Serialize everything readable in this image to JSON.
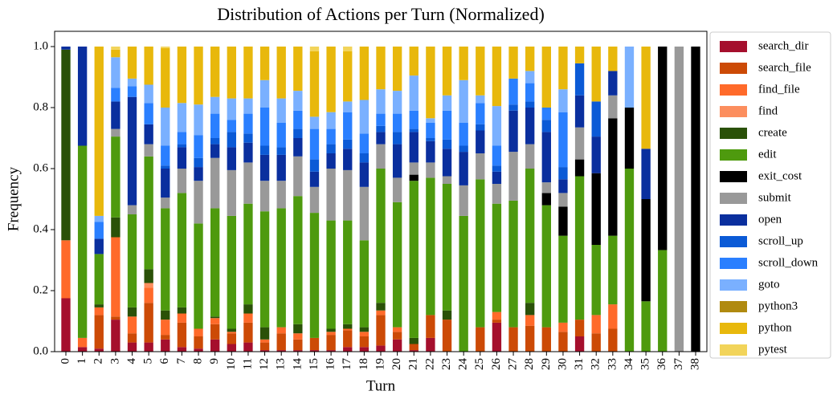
{
  "chart_data": {
    "type": "stacked_bar",
    "title": "Distribution of Actions per Turn (Normalized)",
    "x_label": "Turn",
    "y_label": "Frequency",
    "categories": [
      "0",
      "1",
      "2",
      "3",
      "4",
      "5",
      "6",
      "7",
      "8",
      "9",
      "10",
      "11",
      "12",
      "13",
      "14",
      "15",
      "16",
      "17",
      "18",
      "19",
      "20",
      "21",
      "22",
      "23",
      "24",
      "25",
      "26",
      "27",
      "28",
      "29",
      "30",
      "31",
      "32",
      "33",
      "34",
      "35",
      "36",
      "37",
      "38"
    ],
    "ylim": [
      0,
      1.05
    ],
    "yticks": [
      {
        "value": 0,
        "label": "0.0"
      },
      {
        "value": 0.2,
        "label": "0.2"
      },
      {
        "value": 0.4,
        "label": "0.4"
      },
      {
        "value": 0.6,
        "label": "0.6"
      },
      {
        "value": 0.8,
        "label": "0.8"
      },
      {
        "value": 1.0,
        "label": "1.0"
      }
    ],
    "legend_position": "outside right",
    "series": [
      {
        "name": "search_dir",
        "color": "#a50f2d",
        "values": [
          0.175,
          0.015,
          0.01,
          0.105,
          0.03,
          0.03,
          0.04,
          0.015,
          0.01,
          0.04,
          0.025,
          0.03,
          0.005,
          0.005,
          0.005,
          0.005,
          0.005,
          0.015,
          0.015,
          0.02,
          0.04,
          0.005,
          0.045,
          0,
          0,
          0,
          0.095,
          0,
          0,
          0,
          0,
          0.05,
          0,
          0,
          0,
          0,
          0,
          0,
          0
        ]
      },
      {
        "name": "search_file",
        "color": "#cc4a06",
        "values": [
          0,
          0,
          0.11,
          0.01,
          0.03,
          0.13,
          0.015,
          0.08,
          0.04,
          0.05,
          0.035,
          0.065,
          0.025,
          0.055,
          0.035,
          0.04,
          0.05,
          0.055,
          0.035,
          0.1,
          0.025,
          0.02,
          0.075,
          0.105,
          0,
          0.08,
          0.01,
          0.08,
          0.085,
          0.08,
          0.065,
          0.055,
          0.06,
          0.075,
          0,
          0,
          0,
          0,
          0
        ]
      },
      {
        "name": "find_file",
        "color": "#ff6a2a",
        "values": [
          0.19,
          0.03,
          0.025,
          0.26,
          0.055,
          0.05,
          0.05,
          0.03,
          0.025,
          0.02,
          0.005,
          0.03,
          0.01,
          0.02,
          0.02,
          0,
          0.01,
          0.005,
          0.015,
          0.015,
          0.015,
          0,
          0,
          0,
          0,
          0,
          0.025,
          0,
          0.035,
          0,
          0.03,
          0,
          0.06,
          0.08,
          0,
          0,
          0,
          0,
          0
        ]
      },
      {
        "name": "find",
        "color": "#fc8e5e",
        "values": [
          0,
          0,
          0,
          0,
          0,
          0.015,
          0,
          0,
          0,
          0,
          0,
          0,
          0,
          0,
          0,
          0,
          0,
          0,
          0,
          0,
          0,
          0,
          0,
          0,
          0,
          0,
          0,
          0,
          0,
          0,
          0,
          0,
          0,
          0,
          0,
          0,
          0,
          0,
          0
        ]
      },
      {
        "name": "create",
        "color": "#2a5108",
        "values": [
          0.625,
          0,
          0.01,
          0.065,
          0.03,
          0.045,
          0.03,
          0.02,
          0,
          0.005,
          0.01,
          0.03,
          0.04,
          0,
          0.03,
          0,
          0.01,
          0.015,
          0.015,
          0.025,
          0,
          0.02,
          0,
          0.03,
          0,
          0,
          0,
          0,
          0.04,
          0,
          0,
          0,
          0,
          0,
          0,
          0,
          0,
          0,
          0
        ]
      },
      {
        "name": "edit",
        "color": "#4e9a0e",
        "values": [
          0,
          0.63,
          0.165,
          0.265,
          0.305,
          0.37,
          0.335,
          0.375,
          0.345,
          0.355,
          0.37,
          0.33,
          0.38,
          0.39,
          0.42,
          0.41,
          0.355,
          0.34,
          0.285,
          0.44,
          0.41,
          0.515,
          0.45,
          0.415,
          0.445,
          0.485,
          0.355,
          0.415,
          0.44,
          0.4,
          0.285,
          0.47,
          0.23,
          0.225,
          0.6,
          0.165,
          0.333,
          0,
          0
        ]
      },
      {
        "name": "exit_cost",
        "color": "#000000",
        "values": [
          0,
          0,
          0,
          0,
          0,
          0,
          0,
          0,
          0,
          0,
          0,
          0,
          0,
          0,
          0,
          0,
          0,
          0,
          0,
          0,
          0,
          0.02,
          0,
          0,
          0,
          0,
          0,
          0,
          0,
          0.04,
          0.095,
          0.055,
          0.235,
          0.385,
          0.2,
          0.335,
          0.667,
          0,
          1.0
        ]
      },
      {
        "name": "submit",
        "color": "#999999",
        "values": [
          0,
          0,
          0,
          0.025,
          0.03,
          0.04,
          0.035,
          0.08,
          0.14,
          0.165,
          0.15,
          0.135,
          0.1,
          0.09,
          0.13,
          0.085,
          0.17,
          0.165,
          0.175,
          0.08,
          0.08,
          0.04,
          0.05,
          0.025,
          0.1,
          0.085,
          0.065,
          0.16,
          0.08,
          0.035,
          0.045,
          0.105,
          0,
          0.075,
          0,
          0,
          0,
          1.0,
          0
        ]
      },
      {
        "name": "open",
        "color": "#0a2f9e",
        "values": [
          0.01,
          0.325,
          0.05,
          0.09,
          0.355,
          0.065,
          0.095,
          0.07,
          0.045,
          0.045,
          0.075,
          0.065,
          0.085,
          0.085,
          0.06,
          0.05,
          0.05,
          0.07,
          0.08,
          0.04,
          0.11,
          0.1,
          0.07,
          0.09,
          0.11,
          0.075,
          0.04,
          0.135,
          0.12,
          0.165,
          0.045,
          0.105,
          0.12,
          0.08,
          0,
          0.165,
          0,
          0,
          0
        ]
      },
      {
        "name": "scroll_up",
        "color": "#0b5ad6",
        "values": [
          0,
          0,
          0,
          0,
          0,
          0,
          0.01,
          0.01,
          0.03,
          0.02,
          0.05,
          0.03,
          0.03,
          0.025,
          0.03,
          0.04,
          0.03,
          0.03,
          0.03,
          0.02,
          0.04,
          0.01,
          0.01,
          0.03,
          0.02,
          0.02,
          0.02,
          0.02,
          0.02,
          0.04,
          0.04,
          0.105,
          0.115,
          0,
          0,
          0,
          0,
          0,
          0
        ]
      },
      {
        "name": "scroll_down",
        "color": "#2a7fff",
        "values": [
          0,
          0,
          0.055,
          0.045,
          0.035,
          0.07,
          0.065,
          0.04,
          0.075,
          0.08,
          0.04,
          0.065,
          0.125,
          0.08,
          0.06,
          0.1,
          0.05,
          0.09,
          0.065,
          0.04,
          0.06,
          0.06,
          0.05,
          0.095,
          0.075,
          0.07,
          0.065,
          0.085,
          0.06,
          0.04,
          0.18,
          0,
          0,
          0,
          0,
          0,
          0,
          0,
          0
        ]
      },
      {
        "name": "goto",
        "color": "#7ab0ff",
        "values": [
          0,
          0,
          0.02,
          0.1,
          0.025,
          0.06,
          0.125,
          0.095,
          0.1,
          0.055,
          0.07,
          0.05,
          0.09,
          0.08,
          0.065,
          0.04,
          0.055,
          0.035,
          0.11,
          0.08,
          0.075,
          0.115,
          0.015,
          0.05,
          0.14,
          0.025,
          0.13,
          0,
          0.04,
          0,
          0.075,
          0,
          0,
          0,
          0.2,
          0,
          0,
          0,
          0
        ]
      },
      {
        "name": "python3",
        "color": "#b08a10",
        "values": [
          0,
          0,
          0,
          0,
          0,
          0,
          0,
          0,
          0,
          0,
          0,
          0,
          0,
          0,
          0,
          0,
          0,
          0,
          0,
          0,
          0,
          0,
          0,
          0,
          0,
          0,
          0,
          0,
          0,
          0,
          0,
          0,
          0,
          0,
          0,
          0,
          0,
          0,
          0
        ]
      },
      {
        "name": "python",
        "color": "#e8b80c",
        "values": [
          0,
          0,
          0.555,
          0.025,
          0.105,
          0.125,
          0.195,
          0.185,
          0.19,
          0.165,
          0.17,
          0.17,
          0.11,
          0.17,
          0.145,
          0.215,
          0.215,
          0.165,
          0.175,
          0.14,
          0.145,
          0.095,
          0.235,
          0.16,
          0.11,
          0.16,
          0.195,
          0.105,
          0.08,
          0.2,
          0.14,
          0.055,
          0.18,
          0.08,
          0,
          0.335,
          0,
          0,
          0
        ]
      },
      {
        "name": "pytest",
        "color": "#f2d45a",
        "values": [
          0,
          0,
          0,
          0.01,
          0,
          0,
          0.005,
          0,
          0,
          0,
          0,
          0,
          0,
          0,
          0,
          0.015,
          0,
          0.015,
          0,
          0,
          0,
          0,
          0,
          0,
          0,
          0,
          0,
          0,
          0,
          0,
          0,
          0,
          0,
          0,
          0,
          0,
          0,
          0,
          0
        ]
      }
    ]
  }
}
